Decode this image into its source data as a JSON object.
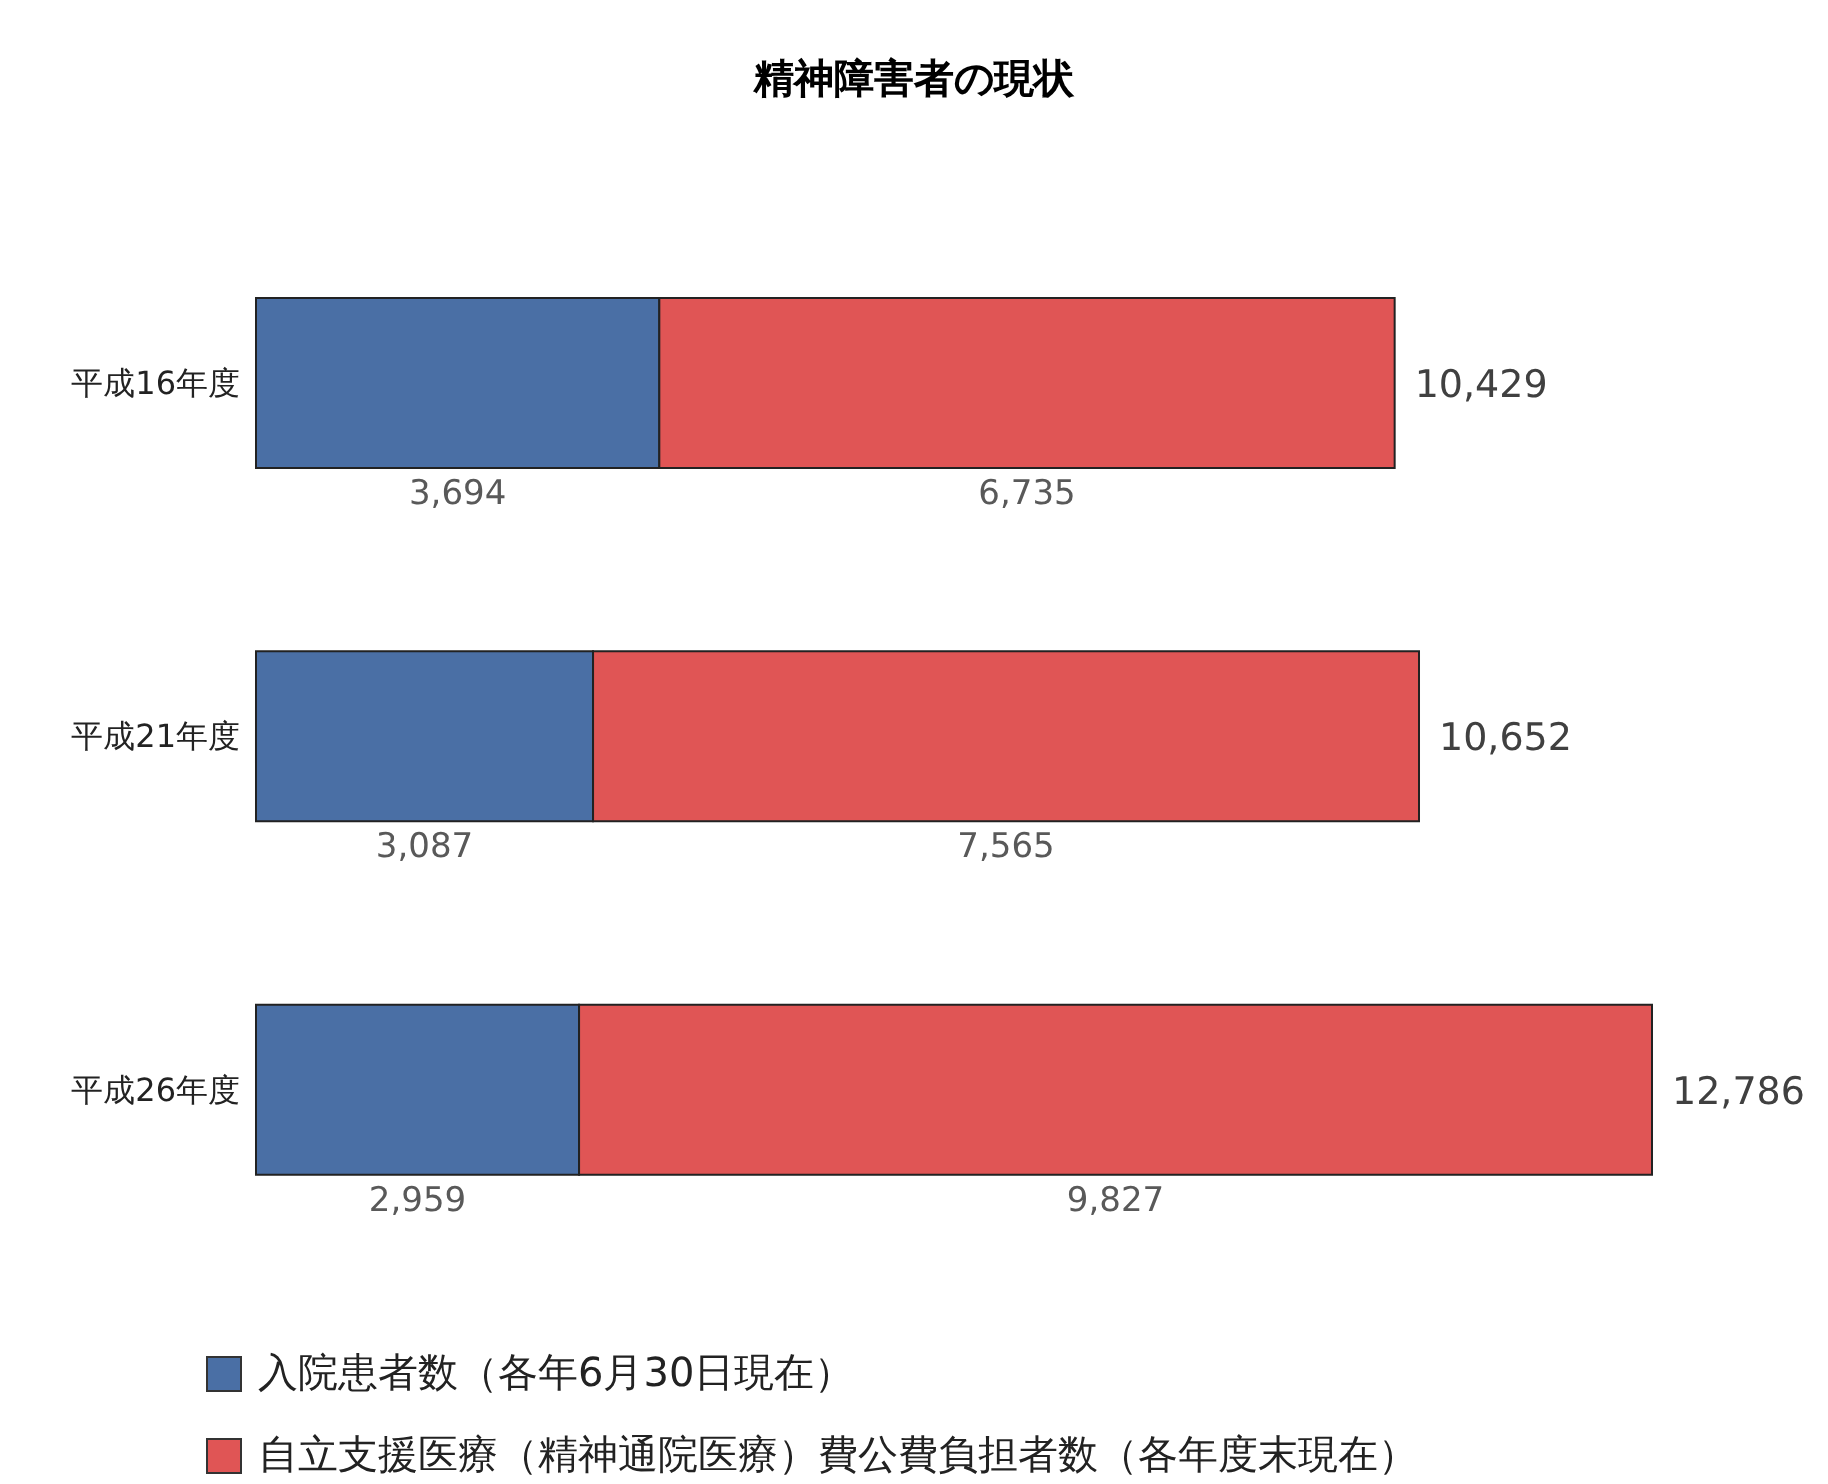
{
  "chart_data": {
    "type": "bar",
    "orientation": "horizontal",
    "stacked": true,
    "title": "精神障害者の現状",
    "categories": [
      "平成16年度",
      "平成21年度",
      "平成26年度"
    ],
    "series": [
      {
        "name": "入院患者数（各年6月30日現在）",
        "color": "#4a6fa5",
        "values": [
          3694,
          3087,
          2959
        ],
        "value_labels": [
          "3,694",
          "3,087",
          "2,959"
        ]
      },
      {
        "name": "自立支援医療（精神通院医療）費公費負担者数（各年度末現在）",
        "color": "#e05555",
        "values": [
          6735,
          7565,
          9827
        ],
        "value_labels": [
          "6,735",
          "7,565",
          "9,827"
        ]
      }
    ],
    "totals": [
      "10,429",
      "10,652",
      "12,786"
    ],
    "legend": "bottom"
  }
}
